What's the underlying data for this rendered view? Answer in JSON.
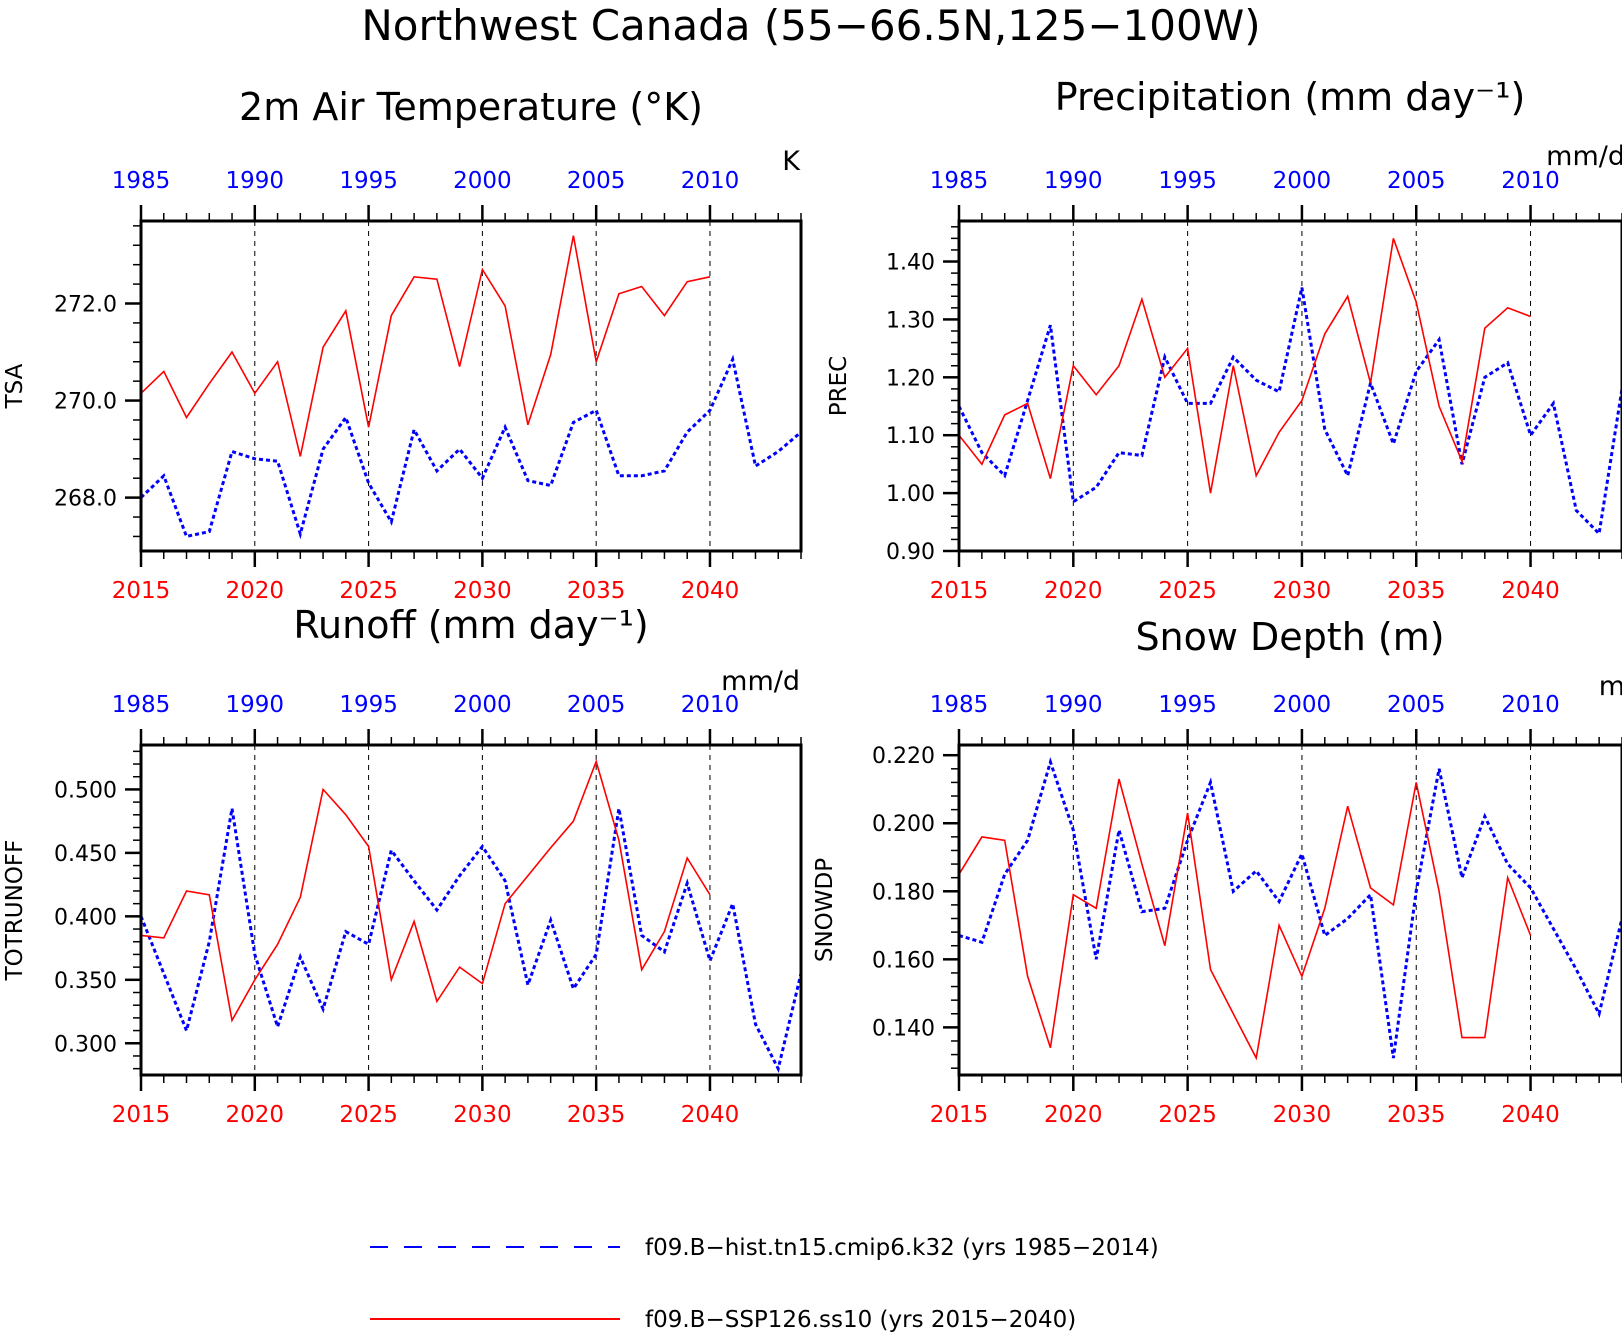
{
  "figure": {
    "title": "Northwest Canada (55−66.5N,125−100W)"
  },
  "legend": [
    {
      "label": "f09.B−hist.tn15.cmip6.k32 (yrs 1985−2014)",
      "color": "#0000ff",
      "style": "dashed"
    },
    {
      "label": "f09.B−SSP126.ss10 (yrs 2015−2040)",
      "color": "#ff0000",
      "style": "solid"
    }
  ],
  "chart_data": [
    {
      "type": "line",
      "title": "2m Air Temperature (°K)",
      "units": "K",
      "ylabel": "TSA",
      "xlabel": "",
      "xlim_bottom": [
        2015,
        2044
      ],
      "xlim_top": [
        1985,
        2014
      ],
      "ylim": [
        266.9,
        273.7
      ],
      "yticks": [
        268.0,
        270.0,
        272.0
      ],
      "ytick_labels": [
        "268.0",
        "270.0",
        "272.0"
      ],
      "bottom_ticks": [
        "2015",
        "2020",
        "2025",
        "2030",
        "2035",
        "2040"
      ],
      "top_ticks": [
        "1985",
        "1990",
        "1995",
        "2000",
        "2005",
        "2010"
      ],
      "grid": "vertical dashed at 5-year ticks",
      "series": [
        {
          "axis": "top",
          "color": "#0000ff",
          "style": "dashed",
          "x": [
            1985,
            1986,
            1987,
            1988,
            1989,
            1990,
            1991,
            1992,
            1993,
            1994,
            1995,
            1996,
            1997,
            1998,
            1999,
            2000,
            2001,
            2002,
            2003,
            2004,
            2005,
            2006,
            2007,
            2008,
            2009,
            2010,
            2011,
            2012,
            2013,
            2014
          ],
          "values": [
            268.0,
            268.45,
            267.2,
            267.3,
            268.95,
            268.8,
            268.75,
            267.25,
            269.0,
            269.65,
            268.3,
            267.5,
            269.4,
            268.55,
            269.0,
            268.4,
            269.45,
            268.35,
            268.25,
            269.55,
            269.8,
            268.45,
            268.45,
            268.55,
            269.35,
            269.8,
            270.85,
            268.65,
            268.95,
            269.35
          ]
        },
        {
          "axis": "bottom",
          "color": "#ff0000",
          "style": "solid",
          "x": [
            2015,
            2016,
            2017,
            2018,
            2019,
            2020,
            2021,
            2022,
            2023,
            2024,
            2025,
            2026,
            2027,
            2028,
            2029,
            2030,
            2031,
            2032,
            2033,
            2034,
            2035,
            2036,
            2037,
            2038,
            2039,
            2040
          ],
          "values": [
            270.15,
            270.6,
            269.65,
            270.35,
            271.0,
            270.15,
            270.8,
            268.85,
            271.1,
            271.85,
            269.45,
            271.75,
            272.55,
            272.5,
            270.7,
            272.7,
            271.95,
            269.5,
            270.95,
            273.4,
            270.8,
            272.2,
            272.35,
            271.75,
            272.45,
            272.55
          ]
        }
      ]
    },
    {
      "type": "line",
      "title": "Precipitation (mm day⁻¹)",
      "units": "mm/d",
      "ylabel": "PREC",
      "xlabel": "",
      "xlim_bottom": [
        2015,
        2044
      ],
      "xlim_top": [
        1985,
        2014
      ],
      "ylim": [
        0.9,
        1.47
      ],
      "yticks": [
        0.9,
        1.0,
        1.1,
        1.2,
        1.3,
        1.4
      ],
      "ytick_labels": [
        "0.90",
        "1.00",
        "1.10",
        "1.20",
        "1.30",
        "1.40"
      ],
      "bottom_ticks": [
        "2015",
        "2020",
        "2025",
        "2030",
        "2035",
        "2040"
      ],
      "top_ticks": [
        "1985",
        "1990",
        "1995",
        "2000",
        "2005",
        "2010"
      ],
      "grid": "vertical dashed at 5-year ticks",
      "series": [
        {
          "axis": "top",
          "color": "#0000ff",
          "style": "dashed",
          "x": [
            1985,
            1986,
            1987,
            1988,
            1989,
            1990,
            1991,
            1992,
            1993,
            1994,
            1995,
            1996,
            1997,
            1998,
            1999,
            2000,
            2001,
            2002,
            2003,
            2004,
            2005,
            2006,
            2007,
            2008,
            2009,
            2010,
            2011,
            2012,
            2013,
            2014
          ],
          "values": [
            1.15,
            1.07,
            1.03,
            1.16,
            1.29,
            0.985,
            1.01,
            1.07,
            1.065,
            1.235,
            1.155,
            1.155,
            1.235,
            1.195,
            1.175,
            1.355,
            1.11,
            1.03,
            1.19,
            1.085,
            1.21,
            1.265,
            1.05,
            1.2,
            1.225,
            1.1,
            1.155,
            0.97,
            0.93,
            1.18
          ]
        },
        {
          "axis": "bottom",
          "color": "#ff0000",
          "style": "solid",
          "x": [
            2015,
            2016,
            2017,
            2018,
            2019,
            2020,
            2021,
            2022,
            2023,
            2024,
            2025,
            2026,
            2027,
            2028,
            2029,
            2030,
            2031,
            2032,
            2033,
            2034,
            2035,
            2036,
            2037,
            2038,
            2039,
            2040
          ],
          "values": [
            1.1,
            1.05,
            1.135,
            1.155,
            1.025,
            1.22,
            1.17,
            1.22,
            1.335,
            1.2,
            1.25,
            1.0,
            1.22,
            1.03,
            1.105,
            1.16,
            1.275,
            1.34,
            1.19,
            1.44,
            1.33,
            1.15,
            1.055,
            1.285,
            1.32,
            1.305
          ]
        }
      ]
    },
    {
      "type": "line",
      "title": "Runoff (mm day⁻¹)",
      "units": "mm/d",
      "ylabel": "TOTRUNOFF",
      "xlabel": "",
      "xlim_bottom": [
        2015,
        2044
      ],
      "xlim_top": [
        1985,
        2014
      ],
      "ylim": [
        0.275,
        0.535
      ],
      "yticks": [
        0.3,
        0.35,
        0.4,
        0.45,
        0.5
      ],
      "ytick_labels": [
        "0.300",
        "0.350",
        "0.400",
        "0.450",
        "0.500"
      ],
      "bottom_ticks": [
        "2015",
        "2020",
        "2025",
        "2030",
        "2035",
        "2040"
      ],
      "top_ticks": [
        "1985",
        "1990",
        "1995",
        "2000",
        "2005",
        "2010"
      ],
      "grid": "vertical dashed at 5-year ticks",
      "series": [
        {
          "axis": "top",
          "color": "#0000ff",
          "style": "dashed",
          "x": [
            1985,
            1986,
            1987,
            1988,
            1989,
            1990,
            1991,
            1992,
            1993,
            1994,
            1995,
            1996,
            1997,
            1998,
            1999,
            2000,
            2001,
            2002,
            2003,
            2004,
            2005,
            2006,
            2007,
            2008,
            2009,
            2010,
            2011,
            2012,
            2013,
            2014
          ],
          "values": [
            0.4,
            0.355,
            0.31,
            0.38,
            0.485,
            0.37,
            0.313,
            0.368,
            0.327,
            0.388,
            0.378,
            0.452,
            0.428,
            0.405,
            0.432,
            0.455,
            0.428,
            0.346,
            0.397,
            0.343,
            0.37,
            0.485,
            0.385,
            0.372,
            0.426,
            0.365,
            0.41,
            0.315,
            0.28,
            0.355
          ]
        },
        {
          "axis": "bottom",
          "color": "#ff0000",
          "style": "solid",
          "x": [
            2015,
            2016,
            2017,
            2018,
            2019,
            2020,
            2021,
            2022,
            2023,
            2024,
            2025,
            2026,
            2027,
            2028,
            2029,
            2030,
            2031,
            2032,
            2033,
            2034,
            2035,
            2036,
            2037,
            2038,
            2039,
            2040
          ],
          "values": [
            0.385,
            0.383,
            0.42,
            0.417,
            0.318,
            0.35,
            0.378,
            0.415,
            0.5,
            0.48,
            0.455,
            0.35,
            0.396,
            0.333,
            0.36,
            0.347,
            0.41,
            0.432,
            0.454,
            0.475,
            0.522,
            0.46,
            0.358,
            0.388,
            0.446,
            0.417
          ]
        }
      ]
    },
    {
      "type": "line",
      "title": "Snow Depth (m)",
      "units": "m",
      "ylabel": "SNOWDP",
      "xlabel": "",
      "xlim_bottom": [
        2015,
        2044
      ],
      "xlim_top": [
        1985,
        2014
      ],
      "ylim": [
        0.126,
        0.223
      ],
      "yticks": [
        0.14,
        0.16,
        0.18,
        0.2,
        0.22
      ],
      "ytick_labels": [
        "0.140",
        "0.160",
        "0.180",
        "0.200",
        "0.220"
      ],
      "bottom_ticks": [
        "2015",
        "2020",
        "2025",
        "2030",
        "2035",
        "2040"
      ],
      "top_ticks": [
        "1985",
        "1990",
        "1995",
        "2000",
        "2005",
        "2010"
      ],
      "grid": "vertical dashed at 5-year ticks",
      "series": [
        {
          "axis": "top",
          "color": "#0000ff",
          "style": "dashed",
          "x": [
            1985,
            1986,
            1987,
            1988,
            1989,
            1990,
            1991,
            1992,
            1993,
            1994,
            1995,
            1996,
            1997,
            1998,
            1999,
            2000,
            2001,
            2002,
            2003,
            2004,
            2005,
            2006,
            2007,
            2008,
            2009,
            2010,
            2011,
            2012,
            2013,
            2014
          ],
          "values": [
            0.167,
            0.165,
            0.185,
            0.195,
            0.218,
            0.198,
            0.16,
            0.198,
            0.174,
            0.175,
            0.195,
            0.212,
            0.18,
            0.186,
            0.177,
            0.191,
            0.167,
            0.172,
            0.179,
            0.131,
            0.18,
            0.216,
            0.184,
            0.202,
            0.188,
            0.181,
            0.169,
            0.157,
            0.144,
            0.172
          ]
        },
        {
          "axis": "bottom",
          "color": "#ff0000",
          "style": "solid",
          "x": [
            2015,
            2016,
            2017,
            2018,
            2019,
            2020,
            2021,
            2022,
            2023,
            2024,
            2025,
            2026,
            2027,
            2028,
            2029,
            2030,
            2031,
            2032,
            2033,
            2034,
            2035,
            2036,
            2037,
            2038,
            2039,
            2040
          ],
          "values": [
            0.185,
            0.196,
            0.195,
            0.155,
            0.134,
            0.179,
            0.175,
            0.213,
            0.188,
            0.164,
            0.203,
            0.157,
            0.144,
            0.131,
            0.17,
            0.155,
            0.175,
            0.205,
            0.181,
            0.176,
            0.212,
            0.18,
            0.137,
            0.137,
            0.184,
            0.167
          ]
        }
      ]
    }
  ]
}
